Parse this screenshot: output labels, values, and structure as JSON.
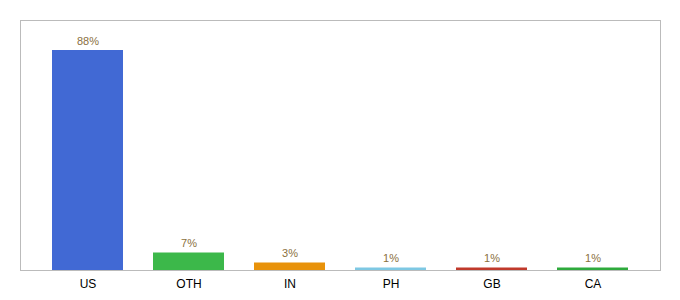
{
  "chart_data": {
    "type": "bar",
    "categories": [
      "US",
      "OTH",
      "IN",
      "PH",
      "GB",
      "CA"
    ],
    "values": [
      88,
      7,
      3,
      1,
      1,
      1
    ],
    "value_labels": [
      "88%",
      "7%",
      "3%",
      "1%",
      "1%",
      "1%"
    ],
    "colors": [
      "#4169d4",
      "#3cb84a",
      "#e8920a",
      "#7ec8e3",
      "#c0392b",
      "#2eaa3c"
    ],
    "ylim": [
      0,
      100
    ],
    "data_labels": true,
    "tick_labels": "x"
  }
}
